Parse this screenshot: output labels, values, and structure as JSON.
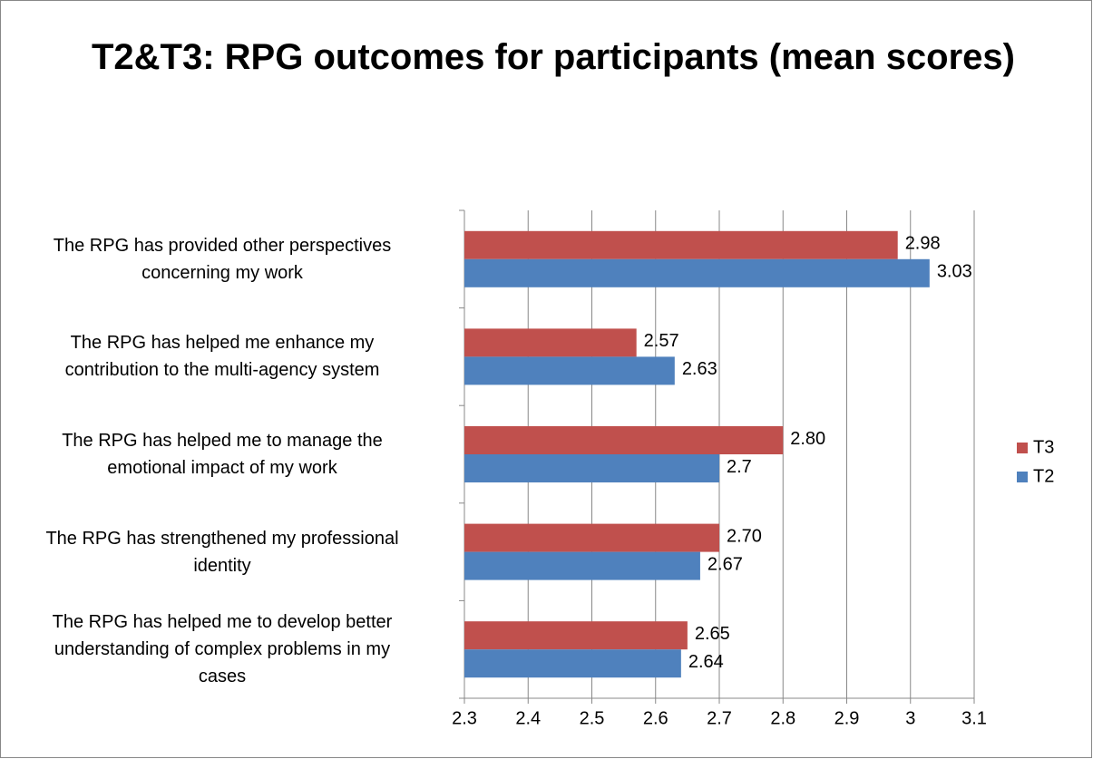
{
  "chart_data": {
    "type": "bar",
    "orientation": "horizontal",
    "title": "T2&T3: RPG outcomes for participants (mean scores)",
    "categories": [
      "The RPG has provided other perspectives\nconcerning my work",
      "The RPG has helped me enhance my\ncontribution to the multi-agency system",
      "The RPG has helped me to manage the\nemotional impact of my work",
      "The RPG has strengthened my professional\nidentity",
      "The RPG has helped me to develop better\nunderstanding of complex problems in my\ncases"
    ],
    "series": [
      {
        "name": "T3",
        "color": "#c0504d",
        "values": [
          2.98,
          2.57,
          2.8,
          2.7,
          2.65
        ],
        "value_labels": [
          "2.98",
          "2.57",
          "2.80",
          "2.70",
          "2.65"
        ]
      },
      {
        "name": "T2",
        "color": "#4f81bd",
        "values": [
          3.03,
          2.63,
          2.7,
          2.67,
          2.64
        ],
        "value_labels": [
          "3.03",
          "2.63",
          "2.7",
          "2.67",
          "2.64"
        ]
      }
    ],
    "xlim": [
      2.3,
      3.1
    ],
    "xticks": [
      2.3,
      2.4,
      2.5,
      2.6,
      2.7,
      2.8,
      2.9,
      3,
      3.1
    ],
    "grid": true,
    "legend": "right"
  }
}
